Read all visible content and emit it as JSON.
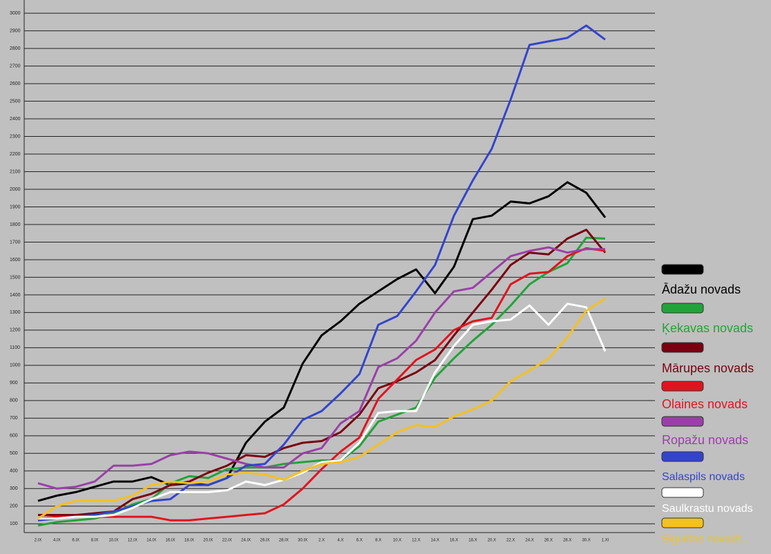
{
  "chart_data": {
    "type": "line",
    "categories": [
      "2.IX",
      "4.IX",
      "6.IX",
      "8.IX",
      "10.IX",
      "12.IX",
      "14.IX",
      "16.IX",
      "18.IX",
      "20.IX",
      "22.IX",
      "24.IX",
      "26.IX",
      "28.IX",
      "30.IX",
      "2.X",
      "4.X",
      "6.X",
      "8.X",
      "10.X",
      "12.X",
      "14.X",
      "16.X",
      "18.X",
      "20.X",
      "22.X",
      "24.X",
      "26.X",
      "28.X",
      "30.X",
      "1.XI"
    ],
    "ylim": [
      50,
      3075
    ],
    "yticks": [
      100,
      200,
      300,
      400,
      500,
      600,
      700,
      800,
      900,
      1000,
      1100,
      1200,
      1300,
      1400,
      1500,
      1600,
      1700,
      1800,
      1900,
      2000,
      2100,
      2200,
      2300,
      2400,
      2500,
      2600,
      2700,
      2800,
      2900,
      3000
    ],
    "grid": true,
    "series": [
      {
        "name": "Ādažu novads",
        "color": "#000000",
        "values": [
          230,
          260,
          280,
          310,
          340,
          340,
          365,
          320,
          330,
          320,
          360,
          560,
          680,
          760,
          1010,
          1170,
          1250,
          1350,
          1420,
          1490,
          1545,
          1410,
          1560,
          1830,
          1850,
          1930,
          1920,
          1960,
          2040,
          1980,
          1840
        ]
      },
      {
        "name": "Ķekavas novads",
        "color": "#22a33a",
        "values": [
          90,
          110,
          120,
          130,
          160,
          210,
          240,
          330,
          370,
          360,
          410,
          420,
          420,
          440,
          450,
          460,
          460,
          540,
          680,
          720,
          760,
          930,
          1040,
          1140,
          1230,
          1340,
          1460,
          1530,
          1580,
          1725,
          1720
        ]
      },
      {
        "name": "Mārupes novads",
        "color": "#7a0010",
        "values": [
          150,
          150,
          150,
          160,
          170,
          240,
          270,
          320,
          340,
          390,
          430,
          490,
          480,
          530,
          560,
          570,
          620,
          720,
          870,
          910,
          960,
          1030,
          1170,
          1300,
          1430,
          1570,
          1640,
          1630,
          1720,
          1770,
          1640
        ]
      },
      {
        "name": "Olaines novads",
        "color": "#e0141e",
        "values": [
          130,
          140,
          140,
          140,
          140,
          140,
          140,
          120,
          120,
          130,
          140,
          150,
          160,
          210,
          300,
          410,
          510,
          590,
          810,
          920,
          1030,
          1090,
          1200,
          1250,
          1270,
          1460,
          1520,
          1530,
          1620,
          1665,
          1650
        ]
      },
      {
        "name": "Ropažu novads",
        "color": "#9a3fa8",
        "values": [
          330,
          300,
          310,
          340,
          430,
          430,
          440,
          490,
          510,
          500,
          470,
          440,
          420,
          420,
          500,
          530,
          670,
          740,
          990,
          1040,
          1140,
          1300,
          1420,
          1440,
          1530,
          1620,
          1650,
          1670,
          1640,
          1660,
          1660
        ]
      },
      {
        "name": "Salaspils novads",
        "color": "#3344cc",
        "values": [
          120,
          130,
          140,
          150,
          170,
          200,
          230,
          240,
          320,
          320,
          360,
          430,
          440,
          550,
          690,
          740,
          840,
          950,
          1230,
          1280,
          1420,
          1570,
          1850,
          2050,
          2230,
          2510,
          2820,
          2840,
          2860,
          2930,
          2850
        ]
      },
      {
        "name": "Saulkrastu novads",
        "color": "#ffffff",
        "values": [
          130,
          130,
          140,
          140,
          150,
          190,
          240,
          280,
          280,
          280,
          290,
          340,
          320,
          350,
          390,
          450,
          460,
          560,
          730,
          740,
          740,
          960,
          1110,
          1230,
          1250,
          1260,
          1340,
          1230,
          1350,
          1330,
          1080
        ]
      },
      {
        "name": "Siguldas novads",
        "color": "#f5c020",
        "values": [
          130,
          200,
          230,
          230,
          230,
          260,
          320,
          340,
          330,
          340,
          380,
          390,
          380,
          350,
          400,
          440,
          450,
          480,
          550,
          620,
          660,
          650,
          710,
          750,
          800,
          910,
          970,
          1040,
          1160,
          1310,
          1380
        ]
      }
    ]
  }
}
